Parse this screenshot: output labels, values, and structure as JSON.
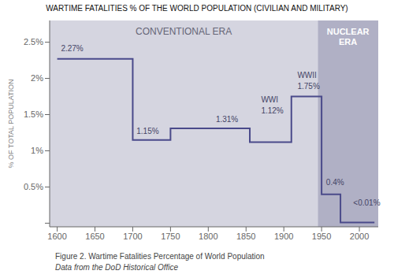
{
  "chart_data": {
    "type": "line",
    "title": "WARTIME FATALITIES % OF THE WORLD POPULATION (CIVILIAN AND MILITARY)",
    "ylabel": "% OF TOTAL POPULATION",
    "captions": [
      "Figure 2. Wartime Fatalities Percentage of World Population",
      "Data from the DoD Historical Office"
    ],
    "x": [
      1600,
      1700,
      1700,
      1750,
      1750,
      1855,
      1855,
      1910,
      1910,
      1950,
      1950,
      1975,
      1975,
      2020
    ],
    "series": [
      {
        "color": "#4a4a8a",
        "values": [
          0.0227,
          0.0227,
          0.0115,
          0.0115,
          0.0131,
          0.0131,
          0.0112,
          0.0112,
          0.0175,
          0.0175,
          0.004,
          0.004,
          0.0001,
          0.0001
        ]
      }
    ],
    "xlim": [
      1590,
      2025
    ],
    "ylim": [
      -0.0005,
      0.028
    ],
    "xticks": [
      1600,
      1650,
      1700,
      1750,
      1800,
      1850,
      1900,
      1950,
      2000
    ],
    "yticks": [
      {
        "value": 0.0,
        "label": ""
      },
      {
        "value": 0.005,
        "label": "0.5%"
      },
      {
        "value": 0.01,
        "label": "1%"
      },
      {
        "value": 0.015,
        "label": "1.5%"
      },
      {
        "value": 0.02,
        "label": "2%"
      },
      {
        "value": 0.025,
        "label": "2.5%"
      }
    ],
    "grid": false,
    "regions": [
      {
        "label": "CONVENTIONAL ERA",
        "x": [
          1590,
          1945
        ],
        "color": "#d5d5e0"
      },
      {
        "label": "NUCLEAR\nERA",
        "x": [
          1945,
          2025
        ],
        "color": "#b0b0c5"
      }
    ],
    "annotations": [
      {
        "text": "2.27%",
        "x": 1605,
        "y": 0.0235
      },
      {
        "text": "1.15%",
        "x": 1705,
        "y": 0.0121
      },
      {
        "text": "1.31%",
        "x": 1810,
        "y": 0.0137
      },
      {
        "text": "WWI",
        "x": 1870,
        "y": 0.0165
      },
      {
        "text": "1.12%",
        "x": 1870,
        "y": 0.015
      },
      {
        "text": "WWII",
        "x": 1918,
        "y": 0.0198
      },
      {
        "text": "1.75%",
        "x": 1918,
        "y": 0.0183
      },
      {
        "text": "0.4%",
        "x": 1956,
        "y": 0.0051
      },
      {
        "text": "<0.01%",
        "x": 1992,
        "y": 0.0022
      }
    ]
  }
}
